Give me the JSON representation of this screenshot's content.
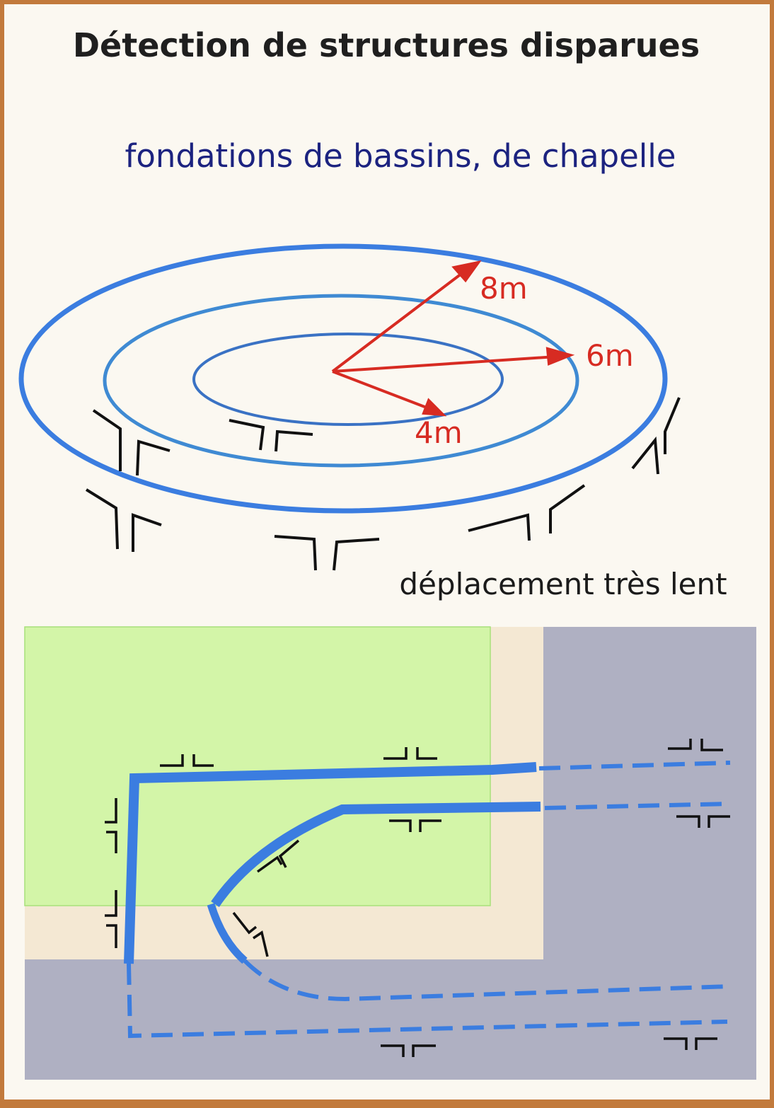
{
  "title": "Détection de structures disparues",
  "subtitle": "fondations de bassins, de chapelle",
  "caption": "déplacement très lent",
  "radii": [
    {
      "label": "8m"
    },
    {
      "label": "6m"
    },
    {
      "label": "4m"
    }
  ],
  "colors": {
    "border": "#c27a3c",
    "background": "#fbf8f1",
    "title": "#1f1f1f",
    "subtitle": "#1c2380",
    "ring_blue": "#3b7de0",
    "arrow_red": "#d72b22",
    "crack_marks": "#111111",
    "zone_green": "#d3f5a8",
    "zone_beige": "#f4e8d3",
    "zone_gray": "#afb0c2"
  }
}
